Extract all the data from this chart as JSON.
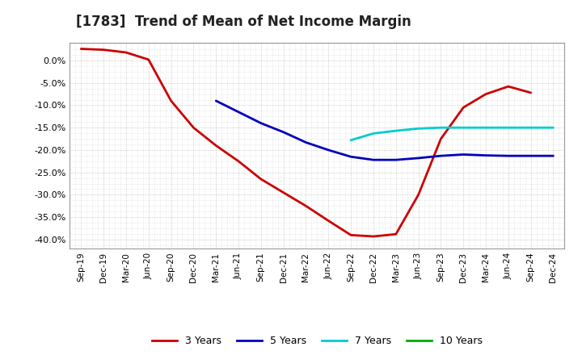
{
  "title": "[1783]  Trend of Mean of Net Income Margin",
  "title_fontsize": 12,
  "ylim": [
    -0.42,
    0.04
  ],
  "yticks": [
    0.0,
    -0.05,
    -0.1,
    -0.15,
    -0.2,
    -0.25,
    -0.3,
    -0.35,
    -0.4
  ],
  "background_color": "#ffffff",
  "plot_bg_color": "#ffffff",
  "grid_color": "#bbbbbb",
  "x_labels": [
    "Sep-19",
    "Dec-19",
    "Mar-20",
    "Jun-20",
    "Sep-20",
    "Dec-20",
    "Mar-21",
    "Jun-21",
    "Sep-21",
    "Dec-21",
    "Mar-22",
    "Jun-22",
    "Sep-22",
    "Dec-22",
    "Mar-23",
    "Jun-23",
    "Sep-23",
    "Dec-23",
    "Mar-24",
    "Jun-24",
    "Sep-24",
    "Dec-24"
  ],
  "series": {
    "3 Years": {
      "color": "#cc0000",
      "linewidth": 2.0,
      "values": [
        0.026,
        0.024,
        0.018,
        0.002,
        -0.09,
        -0.15,
        -0.19,
        -0.225,
        -0.265,
        -0.295,
        -0.325,
        -0.358,
        -0.39,
        -0.393,
        -0.388,
        -0.3,
        -0.175,
        -0.105,
        -0.075,
        -0.058,
        -0.072,
        null
      ]
    },
    "5 Years": {
      "color": "#0000bb",
      "linewidth": 2.0,
      "values": [
        null,
        null,
        null,
        null,
        null,
        null,
        -0.09,
        -0.115,
        -0.14,
        -0.16,
        -0.183,
        -0.2,
        -0.215,
        -0.222,
        -0.222,
        -0.218,
        -0.213,
        -0.21,
        -0.212,
        -0.213,
        -0.213,
        -0.213
      ]
    },
    "7 Years": {
      "color": "#00cccc",
      "linewidth": 2.0,
      "values": [
        null,
        null,
        null,
        null,
        null,
        null,
        null,
        null,
        null,
        null,
        null,
        null,
        -0.178,
        -0.163,
        -0.157,
        -0.152,
        -0.15,
        -0.15,
        -0.15,
        -0.15,
        -0.15,
        -0.15
      ]
    },
    "10 Years": {
      "color": "#00aa00",
      "linewidth": 2.0,
      "values": [
        null,
        null,
        null,
        null,
        null,
        null,
        null,
        null,
        null,
        null,
        null,
        null,
        null,
        null,
        null,
        null,
        null,
        null,
        null,
        null,
        null,
        null
      ]
    }
  },
  "legend_entries": [
    "3 Years",
    "5 Years",
    "7 Years",
    "10 Years"
  ],
  "legend_colors": [
    "#cc0000",
    "#0000bb",
    "#00cccc",
    "#00aa00"
  ]
}
